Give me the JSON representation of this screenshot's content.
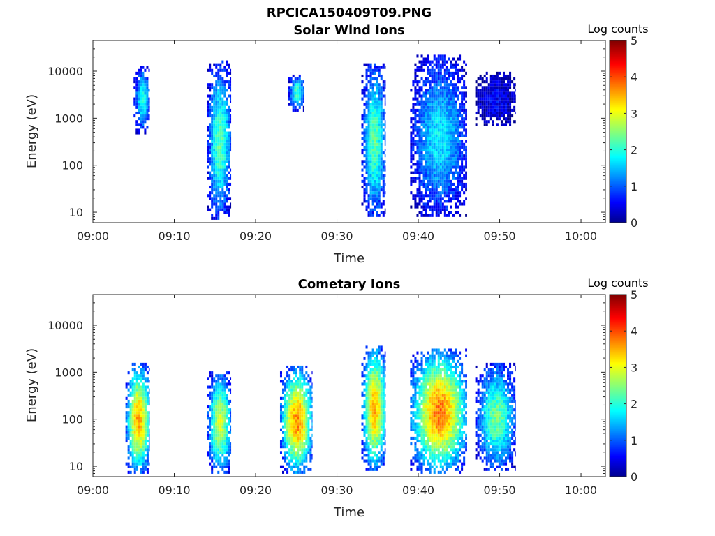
{
  "figure_title": "RPCICA150409T09.PNG",
  "colorbar": {
    "label": "Log counts",
    "min": 0,
    "max": 5,
    "ticks": [
      "0",
      "1",
      "2",
      "3",
      "4",
      "5"
    ],
    "colormap": "jet"
  },
  "chart_data": [
    {
      "type": "heatmap",
      "title": "Solar Wind Ions",
      "xlabel": "Time",
      "ylabel": "Energy (eV)",
      "xlim": [
        "09:00",
        "10:03"
      ],
      "xticks": [
        "09:00",
        "09:10",
        "09:20",
        "09:30",
        "09:40",
        "09:50",
        "10:00"
      ],
      "ylim": [
        6,
        45000
      ],
      "yscale": "log",
      "yticks": [
        "10",
        "100",
        "1000",
        "10000"
      ],
      "clim": [
        0,
        5
      ],
      "bursts": [
        {
          "t_start": "09:05",
          "t_end": "09:07",
          "e_min": 500,
          "e_max": 13000,
          "peak_log_counts": 2.0
        },
        {
          "t_start": "09:14",
          "t_end": "09:17",
          "e_min": 7,
          "e_max": 15000,
          "peak_log_counts": 2.3
        },
        {
          "t_start": "09:24",
          "t_end": "09:26",
          "e_min": 1500,
          "e_max": 8000,
          "peak_log_counts": 2.2
        },
        {
          "t_start": "09:33",
          "t_end": "09:36",
          "e_min": 8,
          "e_max": 15000,
          "peak_log_counts": 2.3
        },
        {
          "t_start": "09:39",
          "t_end": "09:46",
          "e_min": 8,
          "e_max": 20000,
          "peak_log_counts": 1.8
        },
        {
          "t_start": "09:47",
          "t_end": "09:52",
          "e_min": 700,
          "e_max": 9000,
          "peak_log_counts": 0.6
        }
      ]
    },
    {
      "type": "heatmap",
      "title": "Cometary Ions",
      "xlabel": "Time",
      "ylabel": "Energy (eV)",
      "xlim": [
        "09:00",
        "10:03"
      ],
      "xticks": [
        "09:00",
        "09:10",
        "09:20",
        "09:30",
        "09:40",
        "09:50",
        "10:00"
      ],
      "ylim": [
        6,
        45000
      ],
      "yscale": "log",
      "yticks": [
        "10",
        "100",
        "1000",
        "10000"
      ],
      "clim": [
        0,
        5
      ],
      "bursts": [
        {
          "t_start": "09:04",
          "t_end": "09:07",
          "e_min": 7,
          "e_max": 1400,
          "peak_log_counts": 3.6
        },
        {
          "t_start": "09:14",
          "t_end": "09:17",
          "e_min": 7,
          "e_max": 1000,
          "peak_log_counts": 2.9
        },
        {
          "t_start": "09:23",
          "t_end": "09:27",
          "e_min": 7,
          "e_max": 1200,
          "peak_log_counts": 3.7
        },
        {
          "t_start": "09:33",
          "t_end": "09:36",
          "e_min": 8,
          "e_max": 3500,
          "peak_log_counts": 3.5
        },
        {
          "t_start": "09:39",
          "t_end": "09:46",
          "e_min": 7,
          "e_max": 2800,
          "peak_log_counts": 3.8
        },
        {
          "t_start": "09:47",
          "t_end": "09:52",
          "e_min": 8,
          "e_max": 1500,
          "peak_log_counts": 2.4
        }
      ]
    }
  ]
}
